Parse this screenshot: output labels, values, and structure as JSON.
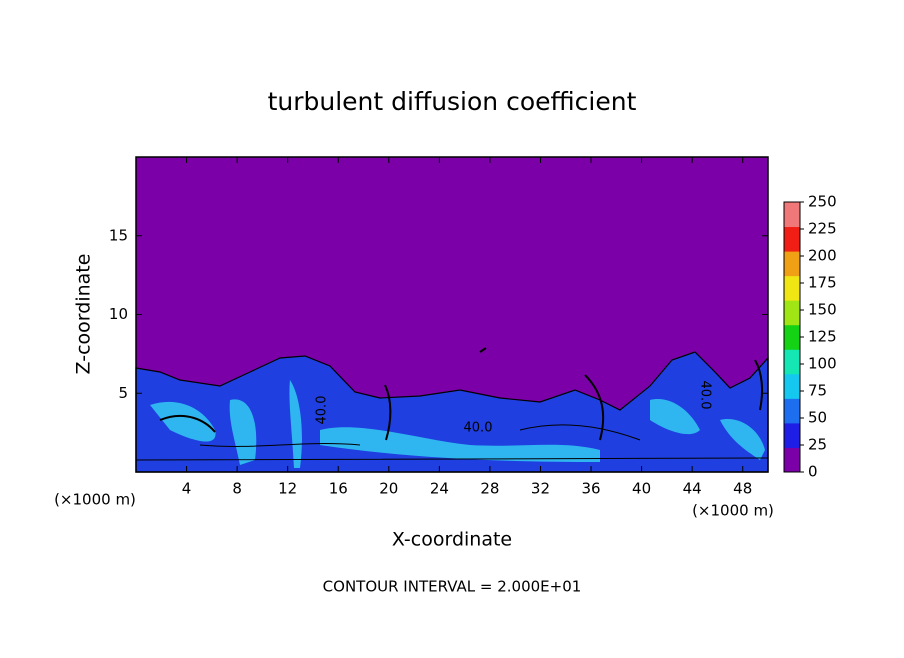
{
  "chart_data": {
    "type": "contour",
    "title": "turbulent diffusion coefficient",
    "x_label": "X-coordinate",
    "y_label": "Z-coordinate",
    "x_unit": "(×1000 m)",
    "y_unit": "(×1000 m)",
    "footer": "CONTOUR INTERVAL = 2.000E+01",
    "contour_labels": [
      "40.0",
      "40.0",
      "40.0"
    ],
    "xlim": [
      0,
      50
    ],
    "xticks": [
      4,
      8,
      12,
      16,
      20,
      24,
      28,
      32,
      36,
      40,
      44,
      48
    ],
    "ylim": [
      0,
      20
    ],
    "yticks": [
      5,
      10,
      15
    ],
    "colorbar": {
      "lim": [
        0,
        250
      ],
      "ticks": [
        0,
        25,
        50,
        75,
        100,
        125,
        150,
        175,
        200,
        225,
        250
      ],
      "colors": [
        "#7b00a8",
        "#1e1ee6",
        "#1e6ef0",
        "#14c8f0",
        "#14e6b4",
        "#14d214",
        "#a0e614",
        "#f0e614",
        "#f0a014",
        "#f01e14",
        "#f07878"
      ]
    }
  }
}
